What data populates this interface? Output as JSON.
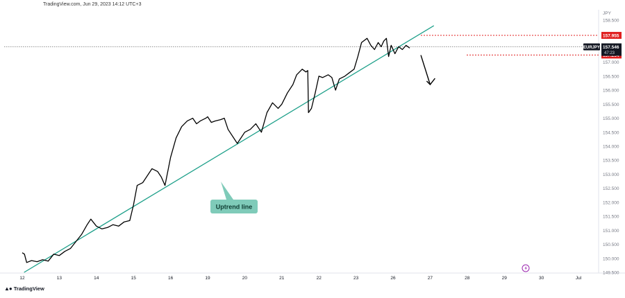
{
  "header": {
    "source": "TradingView.com",
    "datetime": "Jun 29, 2023 14:12 UTC+3"
  },
  "footer": {
    "brand": "TradingView"
  },
  "colors": {
    "price_line": "#000000",
    "trendline": "#1ea08a",
    "callout_bg": "#7fcbb9",
    "level_red": "#e01e1e",
    "current_dotted": "#555555",
    "symbol_badge": "#131722",
    "grid": "#f0f3fa"
  },
  "icons": [
    "lightning-icon",
    "down-arrow-icon"
  ],
  "chart_data": {
    "type": "line",
    "symbol": "EURJPY",
    "currency": "JPY",
    "x_tick_labels": [
      "12",
      "13",
      "14",
      "15",
      "16",
      "19",
      "20",
      "21",
      "22",
      "23",
      "26",
      "27",
      "28",
      "29",
      "30",
      "Jul"
    ],
    "y_tick_labels": [
      "158.500",
      "157.500",
      "157.000",
      "156.500",
      "156.000",
      "155.500",
      "155.000",
      "154.500",
      "154.000",
      "153.500",
      "153.000",
      "152.500",
      "152.000",
      "151.500",
      "151.000",
      "150.500",
      "150.000",
      "149.500"
    ],
    "y_range": [
      149.5,
      158.5
    ],
    "series": [
      {
        "values": [
          [
            0,
            150.2
          ],
          [
            0.06,
            150.15
          ],
          [
            0.12,
            149.85
          ],
          [
            0.25,
            149.92
          ],
          [
            0.4,
            149.88
          ],
          [
            0.55,
            149.95
          ],
          [
            0.7,
            149.9
          ],
          [
            0.85,
            150.15
          ],
          [
            1.0,
            150.1
          ],
          [
            1.15,
            150.25
          ],
          [
            1.3,
            150.35
          ],
          [
            1.45,
            150.6
          ],
          [
            1.6,
            150.85
          ],
          [
            1.75,
            151.2
          ],
          [
            1.85,
            151.4
          ],
          [
            2.0,
            151.15
          ],
          [
            2.15,
            151.05
          ],
          [
            2.3,
            151.1
          ],
          [
            2.45,
            151.2
          ],
          [
            2.6,
            151.15
          ],
          [
            2.75,
            151.3
          ],
          [
            2.9,
            151.35
          ],
          [
            3.0,
            151.9
          ],
          [
            3.1,
            152.6
          ],
          [
            3.25,
            152.7
          ],
          [
            3.4,
            153.0
          ],
          [
            3.5,
            153.2
          ],
          [
            3.65,
            153.1
          ],
          [
            3.75,
            152.9
          ],
          [
            3.85,
            152.6
          ],
          [
            4.0,
            153.6
          ],
          [
            4.15,
            154.3
          ],
          [
            4.3,
            154.7
          ],
          [
            4.45,
            154.9
          ],
          [
            4.6,
            155.0
          ],
          [
            4.7,
            154.8
          ],
          [
            4.8,
            154.9
          ],
          [
            4.95,
            155.0
          ],
          [
            5.0,
            155.05
          ],
          [
            5.1,
            154.85
          ],
          [
            5.2,
            154.9
          ],
          [
            5.35,
            154.95
          ],
          [
            5.45,
            155.0
          ],
          [
            5.55,
            154.6
          ],
          [
            5.7,
            154.3
          ],
          [
            5.8,
            154.1
          ],
          [
            5.9,
            154.3
          ],
          [
            6.0,
            154.5
          ],
          [
            6.15,
            154.6
          ],
          [
            6.3,
            154.8
          ],
          [
            6.45,
            154.5
          ],
          [
            6.6,
            155.2
          ],
          [
            6.75,
            155.55
          ],
          [
            6.9,
            155.35
          ],
          [
            7.0,
            155.5
          ],
          [
            7.15,
            155.9
          ],
          [
            7.3,
            156.2
          ],
          [
            7.4,
            156.55
          ],
          [
            7.55,
            156.75
          ],
          [
            7.65,
            156.65
          ],
          [
            7.7,
            156.7
          ],
          [
            7.72,
            155.2
          ],
          [
            7.8,
            155.35
          ],
          [
            7.9,
            155.9
          ],
          [
            8.0,
            156.5
          ],
          [
            8.1,
            156.45
          ],
          [
            8.25,
            156.55
          ],
          [
            8.35,
            156.45
          ],
          [
            8.45,
            156.0
          ],
          [
            8.55,
            156.4
          ],
          [
            8.7,
            156.5
          ],
          [
            8.8,
            156.6
          ],
          [
            8.95,
            156.75
          ],
          [
            9.05,
            157.2
          ],
          [
            9.15,
            157.7
          ],
          [
            9.3,
            157.85
          ],
          [
            9.4,
            157.6
          ],
          [
            9.5,
            157.45
          ],
          [
            9.6,
            157.7
          ],
          [
            9.68,
            157.55
          ],
          [
            9.75,
            157.75
          ],
          [
            9.82,
            157.85
          ],
          [
            9.88,
            157.2
          ],
          [
            9.95,
            157.6
          ],
          [
            10.05,
            157.3
          ],
          [
            10.15,
            157.55
          ],
          [
            10.25,
            157.45
          ],
          [
            10.35,
            157.6
          ],
          [
            10.45,
            157.5
          ]
        ]
      }
    ],
    "trendline": {
      "label": "Uptrend line",
      "from": [
        0.05,
        149.5
      ],
      "to": [
        11.1,
        158.3
      ]
    },
    "levels": [
      {
        "price_label": "157.955",
        "value": 157.955,
        "color": "#e01e1e",
        "style": "dotted"
      },
      {
        "price_label": "157.254",
        "value": 157.254,
        "color": "#e01e1e",
        "style": "dotted"
      }
    ],
    "current_price": {
      "symbol": "EURJPY",
      "value_label": "157.546",
      "countdown": "47:23",
      "value": 157.546
    },
    "arrow": {
      "direction": "down",
      "from": [
        10.75,
        157.25
      ],
      "to": [
        11.0,
        156.2
      ]
    },
    "grid": false,
    "legend": "none"
  }
}
